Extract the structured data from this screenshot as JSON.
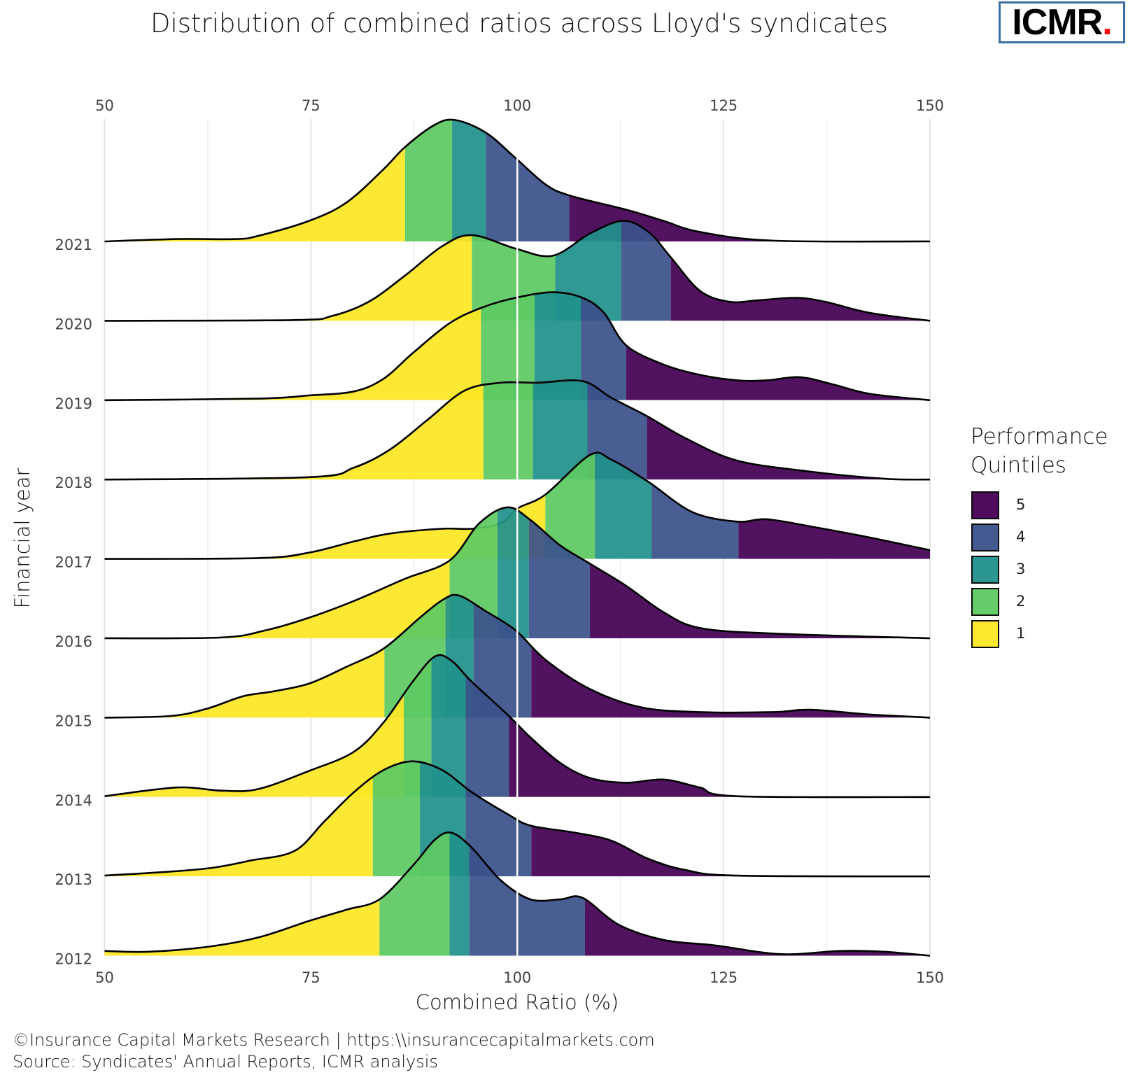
{
  "title": "Distribution of combined ratios across Lloyd's syndicates",
  "logo": {
    "text": "ICMR",
    "dot": ".",
    "border_color": "#3a6ea5",
    "dot_color": "#ff0000"
  },
  "caption": [
    "©Insurance Capital Markets Research | https:\\\\insurancecapitalmarkets.com",
    "Source: Syndicates' Annual Reports, ICMR analysis"
  ],
  "legend": {
    "title_lines": [
      "Performance",
      "Quintiles"
    ],
    "entries": [
      {
        "label": "5",
        "color": "#440154"
      },
      {
        "label": "4",
        "color": "#3b528b"
      },
      {
        "label": "3",
        "color": "#21918c"
      },
      {
        "label": "2",
        "color": "#5ec962"
      },
      {
        "label": "1",
        "color": "#fde725"
      }
    ]
  },
  "chart_data": {
    "type": "ridgeline density",
    "xlabel": "Combined Ratio (%)",
    "ylabel": "Financial year",
    "xlim": [
      50,
      150
    ],
    "xticks": [
      50,
      75,
      100,
      125,
      150
    ],
    "x_axis_top_and_bottom": true,
    "grid": "vertical",
    "reference_line_x": 100,
    "quintile_colors": [
      "#fde725",
      "#5ec962",
      "#21918c",
      "#3b528b",
      "#440154"
    ],
    "legend_placement": "right",
    "years": [
      {
        "year": "2021",
        "quintile_breaks": [
          86.4,
          92.1,
          96.2,
          106.3
        ],
        "density": [
          [
            50,
            0
          ],
          [
            58.75,
            0.03
          ],
          [
            65.9,
            0.03
          ],
          [
            68.6,
            0.07
          ],
          [
            74.8,
            0.26
          ],
          [
            79.3,
            0.49
          ],
          [
            83.8,
            0.91
          ],
          [
            86.4,
            1.19
          ],
          [
            90,
            1.47
          ],
          [
            92.5,
            1.53
          ],
          [
            96.2,
            1.37
          ],
          [
            99.8,
            1.05
          ],
          [
            103.4,
            0.72
          ],
          [
            106.3,
            0.58
          ],
          [
            113.2,
            0.4
          ],
          [
            117.7,
            0.26
          ],
          [
            122.1,
            0.12
          ],
          [
            131,
            0.01
          ],
          [
            150,
            0
          ]
        ]
      },
      {
        "year": "2020",
        "quintile_breaks": [
          94.5,
          104.6,
          112.6,
          118.6
        ],
        "density": [
          [
            50,
            0
          ],
          [
            73,
            0.01
          ],
          [
            77.5,
            0.06
          ],
          [
            82,
            0.24
          ],
          [
            86.4,
            0.57
          ],
          [
            90.9,
            0.94
          ],
          [
            94.5,
            1.08
          ],
          [
            99.8,
            0.91
          ],
          [
            104.3,
            0.82
          ],
          [
            108.8,
            1.1
          ],
          [
            112.8,
            1.26
          ],
          [
            115.9,
            1.12
          ],
          [
            118.6,
            0.8
          ],
          [
            122.1,
            0.38
          ],
          [
            125.7,
            0.24
          ],
          [
            129.3,
            0.26
          ],
          [
            133.8,
            0.29
          ],
          [
            137.3,
            0.24
          ],
          [
            142.7,
            0.1
          ],
          [
            150,
            0
          ]
        ]
      },
      {
        "year": "2019",
        "quintile_breaks": [
          95.6,
          102.1,
          107.7,
          113.2
        ],
        "density": [
          [
            50,
            0
          ],
          [
            68.6,
            0.02
          ],
          [
            74.8,
            0.06
          ],
          [
            80.2,
            0.11
          ],
          [
            83.8,
            0.27
          ],
          [
            87.3,
            0.59
          ],
          [
            91.8,
            0.97
          ],
          [
            95.8,
            1.17
          ],
          [
            99.8,
            1.29
          ],
          [
            104.3,
            1.36
          ],
          [
            107.9,
            1.29
          ],
          [
            110.5,
            1.1
          ],
          [
            113.2,
            0.69
          ],
          [
            117.7,
            0.45
          ],
          [
            122.1,
            0.32
          ],
          [
            126.6,
            0.25
          ],
          [
            130.2,
            0.25
          ],
          [
            134.2,
            0.29
          ],
          [
            138.2,
            0.2
          ],
          [
            142.7,
            0.08
          ],
          [
            150,
            0
          ]
        ]
      },
      {
        "year": "2018",
        "quintile_breaks": [
          95.9,
          101.9,
          108.5,
          115.7
        ],
        "density": [
          [
            50,
            0
          ],
          [
            74.8,
            0.03
          ],
          [
            80.2,
            0.15
          ],
          [
            84.6,
            0.38
          ],
          [
            89.1,
            0.75
          ],
          [
            93.6,
            1.12
          ],
          [
            98,
            1.22
          ],
          [
            102.5,
            1.22
          ],
          [
            107.9,
            1.24
          ],
          [
            111.4,
            1.03
          ],
          [
            115.7,
            0.8
          ],
          [
            120.4,
            0.52
          ],
          [
            126.6,
            0.24
          ],
          [
            135.5,
            0.1
          ],
          [
            144.5,
            0.01
          ],
          [
            150,
            0
          ]
        ]
      },
      {
        "year": "2017",
        "quintile_breaks": [
          103.4,
          109.4,
          116.3,
          126.8
        ],
        "density": [
          [
            50,
            0
          ],
          [
            68.6,
            0.01
          ],
          [
            74.8,
            0.08
          ],
          [
            80.2,
            0.22
          ],
          [
            84.6,
            0.32
          ],
          [
            90.9,
            0.38
          ],
          [
            94.5,
            0.38
          ],
          [
            98,
            0.45
          ],
          [
            100.1,
            0.64
          ],
          [
            103.4,
            0.81
          ],
          [
            108.8,
            1.31
          ],
          [
            111.4,
            1.25
          ],
          [
            115.9,
            0.97
          ],
          [
            121.2,
            0.59
          ],
          [
            126.6,
            0.47
          ],
          [
            130.2,
            0.5
          ],
          [
            135.5,
            0.41
          ],
          [
            142.7,
            0.27
          ],
          [
            150,
            0.11
          ]
        ]
      },
      {
        "year": "2016",
        "quintile_breaks": [
          91.8,
          97.6,
          101.4,
          108.8
        ],
        "density": [
          [
            50,
            0
          ],
          [
            64.1,
            0.01
          ],
          [
            69.5,
            0.1
          ],
          [
            74.8,
            0.26
          ],
          [
            80.2,
            0.47
          ],
          [
            86.4,
            0.75
          ],
          [
            91.8,
            0.98
          ],
          [
            95.4,
            1.45
          ],
          [
            98.8,
            1.65
          ],
          [
            101.6,
            1.49
          ],
          [
            105.2,
            1.17
          ],
          [
            108.8,
            0.94
          ],
          [
            113.2,
            0.66
          ],
          [
            117.7,
            0.33
          ],
          [
            122.1,
            0.13
          ],
          [
            131,
            0.06
          ],
          [
            150,
            0
          ]
        ]
      },
      {
        "year": "2015",
        "quintile_breaks": [
          83.9,
          91.3,
          94.7,
          101.7
        ],
        "density": [
          [
            50,
            0
          ],
          [
            57.9,
            0.02
          ],
          [
            62.3,
            0.11
          ],
          [
            66.8,
            0.27
          ],
          [
            70.4,
            0.33
          ],
          [
            74.8,
            0.43
          ],
          [
            79.3,
            0.64
          ],
          [
            83.8,
            0.87
          ],
          [
            88.2,
            1.26
          ],
          [
            90.9,
            1.48
          ],
          [
            92.9,
            1.54
          ],
          [
            96.2,
            1.34
          ],
          [
            99.8,
            1.1
          ],
          [
            103.4,
            0.73
          ],
          [
            108.8,
            0.36
          ],
          [
            115,
            0.13
          ],
          [
            122.1,
            0.07
          ],
          [
            131,
            0.07
          ],
          [
            135.5,
            0.1
          ],
          [
            142.7,
            0.04
          ],
          [
            150,
            0
          ]
        ]
      },
      {
        "year": "2014",
        "quintile_breaks": [
          86.25,
          89.6,
          93.75,
          99.0
        ],
        "density": [
          [
            50,
            0.01
          ],
          [
            58.75,
            0.12
          ],
          [
            64.1,
            0.08
          ],
          [
            68.6,
            0.1
          ],
          [
            74.8,
            0.33
          ],
          [
            80.2,
            0.57
          ],
          [
            83.8,
            0.94
          ],
          [
            87.3,
            1.45
          ],
          [
            90,
            1.77
          ],
          [
            92,
            1.72
          ],
          [
            94.5,
            1.45
          ],
          [
            98.9,
            1.03
          ],
          [
            101.6,
            0.75
          ],
          [
            105.2,
            0.43
          ],
          [
            108.8,
            0.24
          ],
          [
            113.2,
            0.18
          ],
          [
            117.7,
            0.22
          ],
          [
            122.1,
            0.12
          ],
          [
            126.6,
            0.01
          ],
          [
            150,
            0
          ]
        ]
      },
      {
        "year": "2013",
        "quintile_breaks": [
          82.5,
          88.2,
          93.75,
          101.7
        ],
        "density": [
          [
            50,
            0.01
          ],
          [
            57.9,
            0.06
          ],
          [
            63.2,
            0.11
          ],
          [
            67.7,
            0.2
          ],
          [
            73,
            0.32
          ],
          [
            76.6,
            0.69
          ],
          [
            80.2,
            1.06
          ],
          [
            83.8,
            1.34
          ],
          [
            87.3,
            1.45
          ],
          [
            90.9,
            1.34
          ],
          [
            94.5,
            1.06
          ],
          [
            98.9,
            0.78
          ],
          [
            101.6,
            0.64
          ],
          [
            107,
            0.55
          ],
          [
            111.4,
            0.45
          ],
          [
            115.9,
            0.22
          ],
          [
            120.4,
            0.08
          ],
          [
            126.6,
            0.01
          ],
          [
            150,
            0
          ]
        ]
      },
      {
        "year": "2012",
        "quintile_breaks": [
          83.3,
          91.8,
          94.2,
          108.2
        ],
        "density": [
          [
            50,
            0.06
          ],
          [
            55.2,
            0.05
          ],
          [
            62.3,
            0.11
          ],
          [
            68.6,
            0.23
          ],
          [
            74.8,
            0.44
          ],
          [
            79.3,
            0.58
          ],
          [
            83.3,
            0.71
          ],
          [
            87.3,
            1.13
          ],
          [
            90,
            1.46
          ],
          [
            92,
            1.55
          ],
          [
            94.5,
            1.36
          ],
          [
            98,
            0.95
          ],
          [
            101.6,
            0.71
          ],
          [
            105.2,
            0.71
          ],
          [
            107.9,
            0.73
          ],
          [
            112.3,
            0.39
          ],
          [
            117.7,
            0.2
          ],
          [
            124,
            0.13
          ],
          [
            131.9,
            0.02
          ],
          [
            139.1,
            0.06
          ],
          [
            144.5,
            0.05
          ],
          [
            150,
            0
          ]
        ]
      }
    ]
  }
}
